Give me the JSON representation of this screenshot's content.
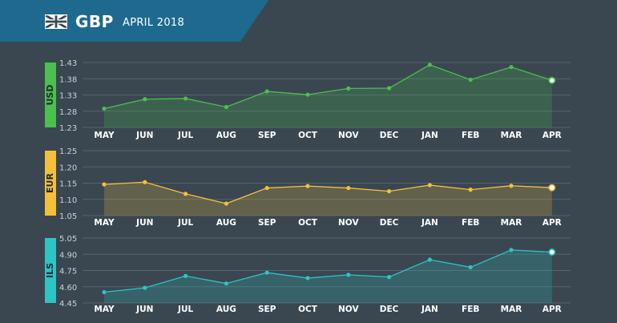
{
  "header": {
    "flag_icon": "uk-flag-icon",
    "currency": "GBP",
    "period": "APRIL 2018",
    "band_color": "#1e6a8e"
  },
  "chart_data": [
    {
      "type": "area",
      "label": "USD",
      "color": "#4bbf4f",
      "categories": [
        "MAY",
        "JUN",
        "JUL",
        "AUG",
        "SEP",
        "OCT",
        "NOV",
        "DEC",
        "JAN",
        "FEB",
        "MAR",
        "APR"
      ],
      "values": [
        1.288,
        1.317,
        1.319,
        1.293,
        1.341,
        1.331,
        1.35,
        1.351,
        1.423,
        1.377,
        1.416,
        1.375
      ],
      "yticks": [
        1.23,
        1.28,
        1.33,
        1.38,
        1.43
      ],
      "ylim": [
        1.23,
        1.43
      ],
      "grid": true
    },
    {
      "type": "area",
      "label": "EUR",
      "color": "#f3c03c",
      "categories": [
        "MAY",
        "JUN",
        "JUL",
        "AUG",
        "SEP",
        "OCT",
        "NOV",
        "DEC",
        "JAN",
        "FEB",
        "MAR",
        "APR"
      ],
      "values": [
        1.146,
        1.153,
        1.117,
        1.087,
        1.135,
        1.141,
        1.135,
        1.125,
        1.144,
        1.13,
        1.142,
        1.136
      ],
      "yticks": [
        1.05,
        1.1,
        1.15,
        1.2,
        1.25
      ],
      "ylim": [
        1.05,
        1.25
      ],
      "grid": true
    },
    {
      "type": "area",
      "label": "ILS",
      "color": "#2ec4c4",
      "categories": [
        "MAY",
        "JUN",
        "JUL",
        "AUG",
        "SEP",
        "OCT",
        "NOV",
        "DEC",
        "JAN",
        "FEB",
        "MAR",
        "APR"
      ],
      "values": [
        4.55,
        4.59,
        4.7,
        4.63,
        4.73,
        4.68,
        4.71,
        4.69,
        4.85,
        4.78,
        4.94,
        4.92
      ],
      "yticks": [
        4.45,
        4.6,
        4.75,
        4.9,
        5.05
      ],
      "ylim": [
        4.45,
        5.05
      ],
      "grid": true
    }
  ]
}
